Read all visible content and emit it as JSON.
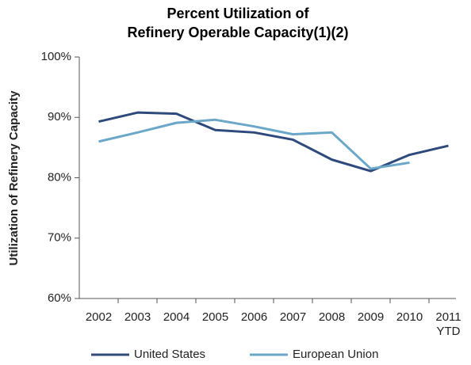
{
  "chart_data": {
    "type": "line",
    "title": [
      "Percent Utilization of",
      "Refinery Operable Capacity(1)(2)"
    ],
    "y_label": "Utilization of Refinery Capacity",
    "categories": [
      "2002",
      "2003",
      "2004",
      "2005",
      "2006",
      "2007",
      "2008",
      "2009",
      "2010",
      "2011 YTD"
    ],
    "series": [
      {
        "name": "United States",
        "color": "#2e4a7d",
        "values": [
          89.3,
          90.8,
          90.6,
          87.9,
          87.5,
          86.3,
          83.0,
          81.1,
          83.8,
          85.3
        ]
      },
      {
        "name": "European Union",
        "color": "#6aa7c9",
        "values": [
          86.0,
          87.5,
          89.1,
          89.6,
          88.5,
          87.2,
          87.5,
          81.5,
          82.5,
          null
        ]
      }
    ],
    "ylim": [
      60,
      100
    ],
    "yticks": [
      {
        "value": 60,
        "label": "60%"
      },
      {
        "value": 70,
        "label": "70%"
      },
      {
        "value": 80,
        "label": "80%"
      },
      {
        "value": 90,
        "label": "90%"
      },
      {
        "value": 100,
        "label": "100%"
      }
    ],
    "grid": false,
    "legend": "bottom"
  }
}
